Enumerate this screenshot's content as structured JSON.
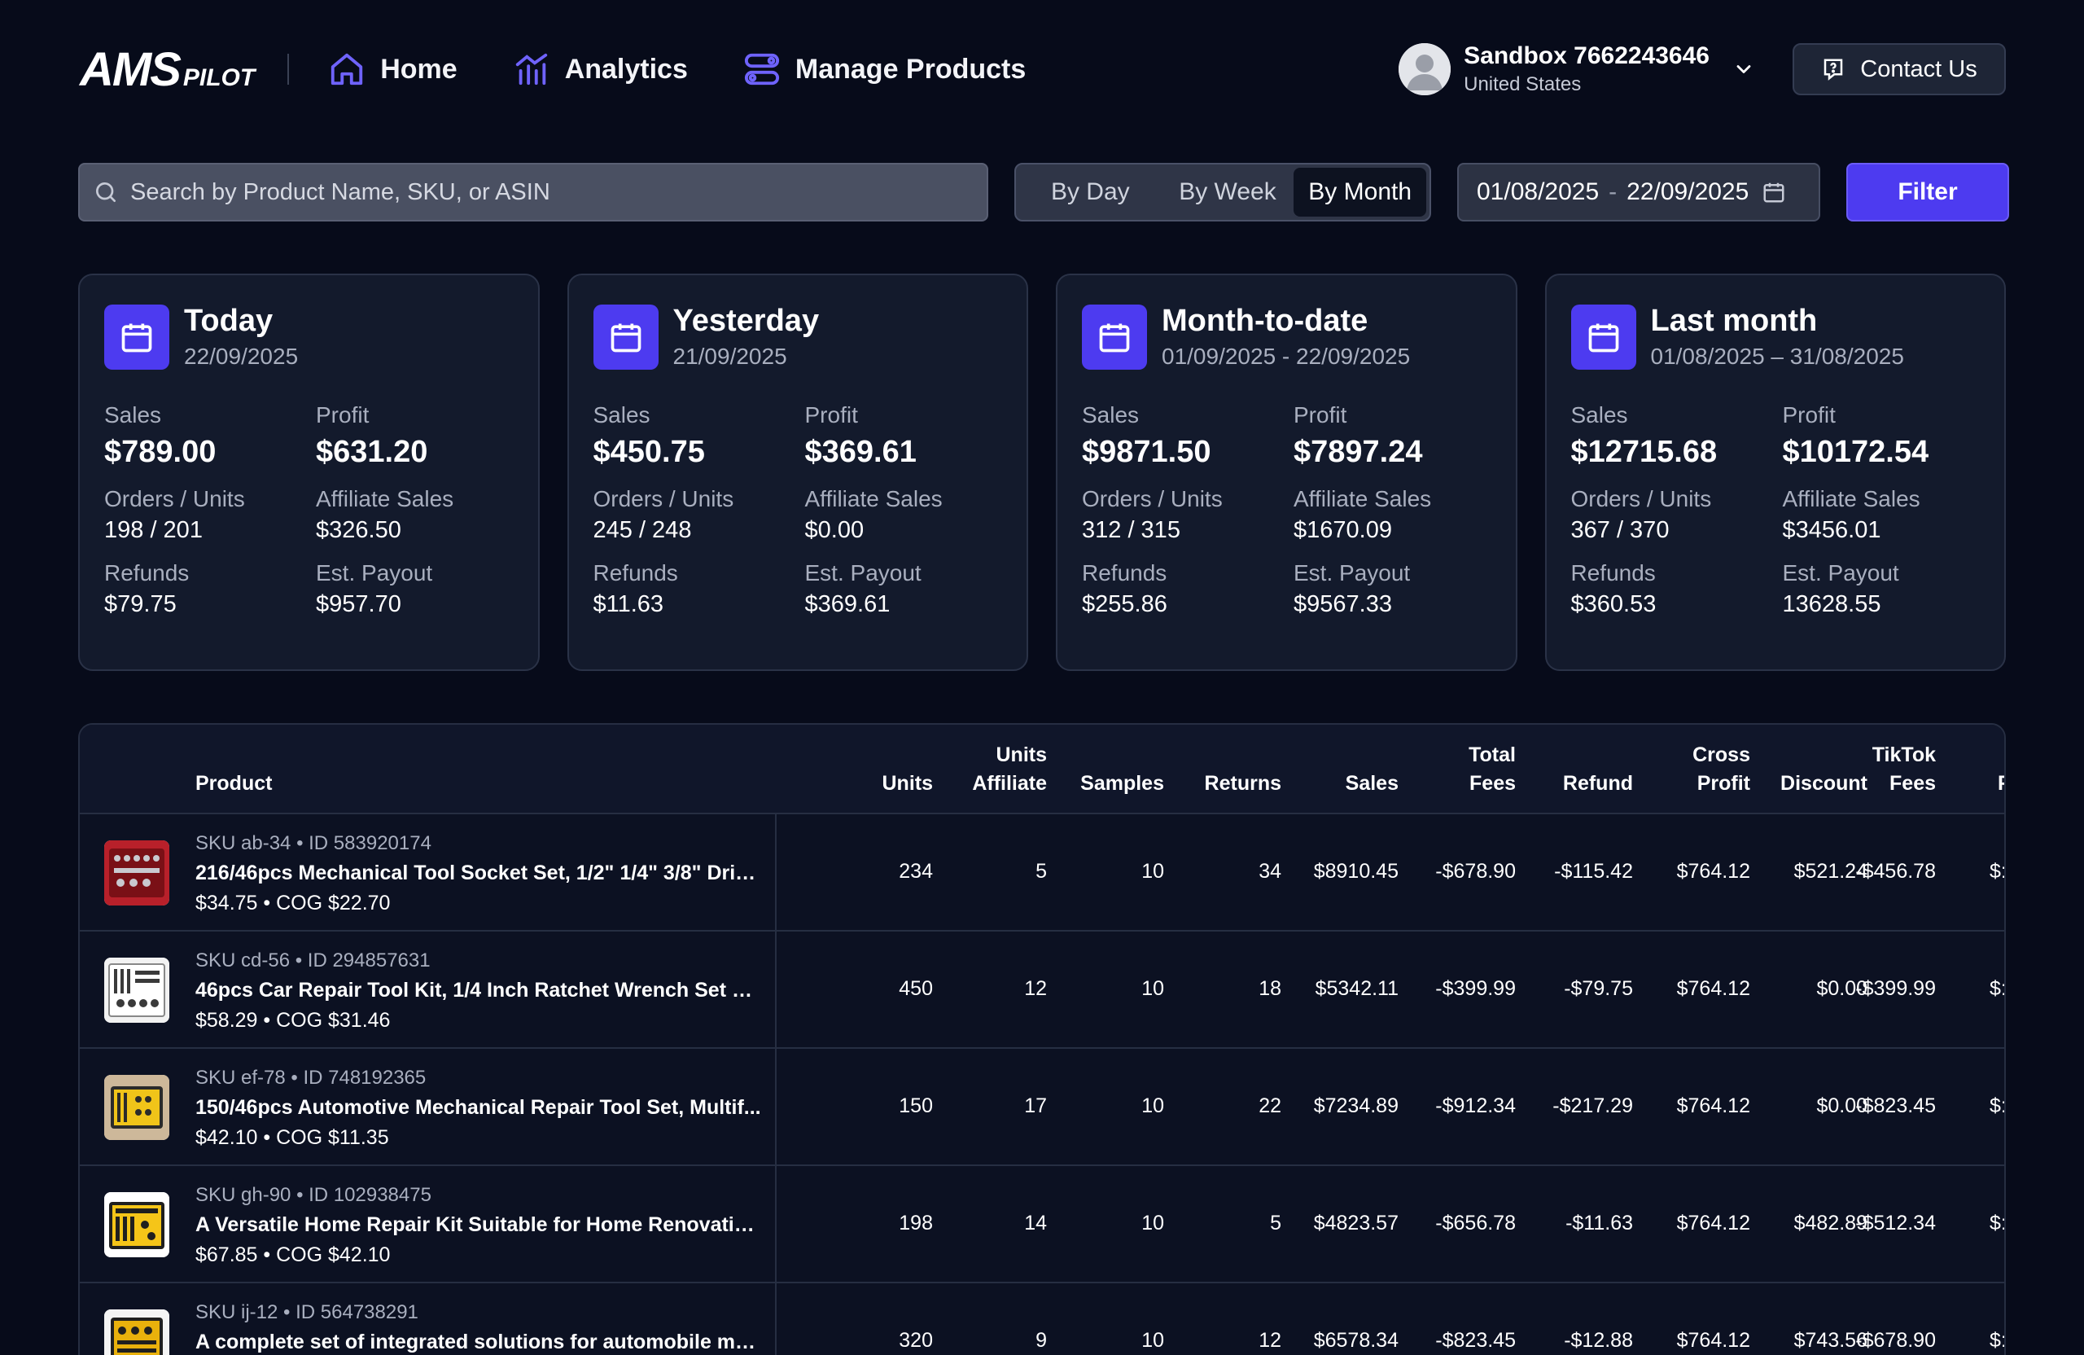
{
  "header": {
    "logo_main": "AMS",
    "logo_sub": "PILOT",
    "nav": [
      {
        "label": "Home",
        "icon": "home-icon"
      },
      {
        "label": "Analytics",
        "icon": "analytics-icon"
      },
      {
        "label": "Manage Products",
        "icon": "manage-products-icon"
      }
    ],
    "user_name": "Sandbox 7662243646",
    "user_country": "United States",
    "contact_label": "Contact Us"
  },
  "toolbar": {
    "search_placeholder": "Search by Product Name, SKU, or ASIN",
    "segments": [
      "By Day",
      "By Week",
      "By Month"
    ],
    "active_segment": "By Month",
    "date_start": "01/08/2025",
    "date_sep": "-",
    "date_end": "22/09/2025",
    "filter_label": "Filter"
  },
  "cards": [
    {
      "title": "Today",
      "subtitle": "22/09/2025",
      "sales_label": "Sales",
      "sales": "$789.00",
      "profit_label": "Profit",
      "profit": "$631.20",
      "orders_label": "Orders / Units",
      "orders": "198 / 201",
      "affiliate_label": "Affiliate Sales",
      "affiliate": "$326.50",
      "refunds_label": "Refunds",
      "refunds": "$79.75",
      "payout_label": "Est. Payout",
      "payout": "$957.70"
    },
    {
      "title": "Yesterday",
      "subtitle": "21/09/2025",
      "sales_label": "Sales",
      "sales": "$450.75",
      "profit_label": "Profit",
      "profit": "$369.61",
      "orders_label": "Orders / Units",
      "orders": "245 / 248",
      "affiliate_label": "Affiliate Sales",
      "affiliate": "$0.00",
      "refunds_label": "Refunds",
      "refunds": "$11.63",
      "payout_label": "Est. Payout",
      "payout": "$369.61"
    },
    {
      "title": "Month-to-date",
      "subtitle": "01/09/2025 - 22/09/2025",
      "sales_label": "Sales",
      "sales": "$9871.50",
      "profit_label": "Profit",
      "profit": "$7897.24",
      "orders_label": "Orders / Units",
      "orders": "312 / 315",
      "affiliate_label": "Affiliate Sales",
      "affiliate": "$1670.09",
      "refunds_label": "Refunds",
      "refunds": "$255.86",
      "payout_label": "Est. Payout",
      "payout": "$9567.33"
    },
    {
      "title": "Last month",
      "subtitle": "01/08/2025 – 31/08/2025",
      "sales_label": "Sales",
      "sales": "$12715.68",
      "profit_label": "Profit",
      "profit": "$10172.54",
      "orders_label": "Orders / Units",
      "orders": "367 / 370",
      "affiliate_label": "Affiliate Sales",
      "affiliate": "$3456.01",
      "refunds_label": "Refunds",
      "refunds": "$360.53",
      "payout_label": "Est. Payout",
      "payout": "13628.55"
    }
  ],
  "table": {
    "headers": {
      "product": "Product",
      "units": "Units",
      "units_affiliate_1": "Units",
      "units_affiliate_2": "Affiliate",
      "samples": "Samples",
      "returns": "Returns",
      "sales": "Sales",
      "total_fees_1": "Total",
      "total_fees_2": "Fees",
      "refund": "Refund",
      "cross_profit_1": "Cross",
      "cross_profit_2": "Profit",
      "discount": "Discount",
      "tiktok_fees_1": "TikTok",
      "tiktok_fees_2": "Fees",
      "next_cut": "F"
    },
    "rows": [
      {
        "sku": "SKU ab-34 • ID 583920174",
        "name": "216/46pcs Mechanical Tool Socket Set, 1/2\" 1/4\" 3/8\" Driv...",
        "price": "$34.75 • COG $22.70",
        "units": "234",
        "affiliate": "5",
        "samples": "10",
        "returns": "34",
        "sales": "$8910.45",
        "fees": "-$678.90",
        "refund": "-$115.42",
        "profit": "$764.12",
        "discount": "$521.24",
        "tiktok": "-$456.78",
        "cut": "$:"
      },
      {
        "sku": "SKU cd-56 • ID 294857631",
        "name": "46pcs Car Repair Tool Kit, 1/4 Inch Ratchet Wrench Set wit...",
        "price": "$58.29 • COG $31.46",
        "units": "450",
        "affiliate": "12",
        "samples": "10",
        "returns": "18",
        "sales": "$5342.11",
        "fees": "-$399.99",
        "refund": "-$79.75",
        "profit": "$764.12",
        "discount": "$0.00",
        "tiktok": "-$399.99",
        "cut": "$:"
      },
      {
        "sku": "SKU ef-78 • ID 748192365",
        "name": "150/46pcs Automotive Mechanical Repair Tool Set, Multif...",
        "price": "$42.10 • COG $11.35",
        "units": "150",
        "affiliate": "17",
        "samples": "10",
        "returns": "22",
        "sales": "$7234.89",
        "fees": "-$912.34",
        "refund": "-$217.29",
        "profit": "$764.12",
        "discount": "$0.00",
        "tiktok": "-$823.45",
        "cut": "$:"
      },
      {
        "sku": "SKU gh-90 • ID 102938475",
        "name": "A Versatile Home Repair Kit Suitable for Home Renovation...",
        "price": "$67.85 • COG $42.10",
        "units": "198",
        "affiliate": "14",
        "samples": "10",
        "returns": "5",
        "sales": "$4823.57",
        "fees": "-$656.78",
        "refund": "-$11.63",
        "profit": "$764.12",
        "discount": "$482.89",
        "tiktok": "-$512.34",
        "cut": "$:"
      },
      {
        "sku": "SKU ij-12 • ID 564738291",
        "name": "A complete set of integrated solutions for automobile mai...",
        "price": "",
        "units": "320",
        "affiliate": "9",
        "samples": "10",
        "returns": "12",
        "sales": "$6578.34",
        "fees": "-$823.45",
        "refund": "-$12.88",
        "profit": "$764.12",
        "discount": "$743.56",
        "tiktok": "-$678.90",
        "cut": "$:"
      }
    ]
  },
  "colors": {
    "background": "#070b1a",
    "accent": "#4d3bf0",
    "card": "#131a2c"
  }
}
